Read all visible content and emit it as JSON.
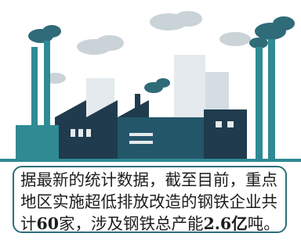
{
  "caption": {
    "text_parts": [
      "据最新的统计数据，截至目前，重点地区实施超低排放改造的钢铁企业共计",
      "60",
      "家，涉及钢铁总产能",
      "2.6亿",
      "吨。"
    ]
  }
}
